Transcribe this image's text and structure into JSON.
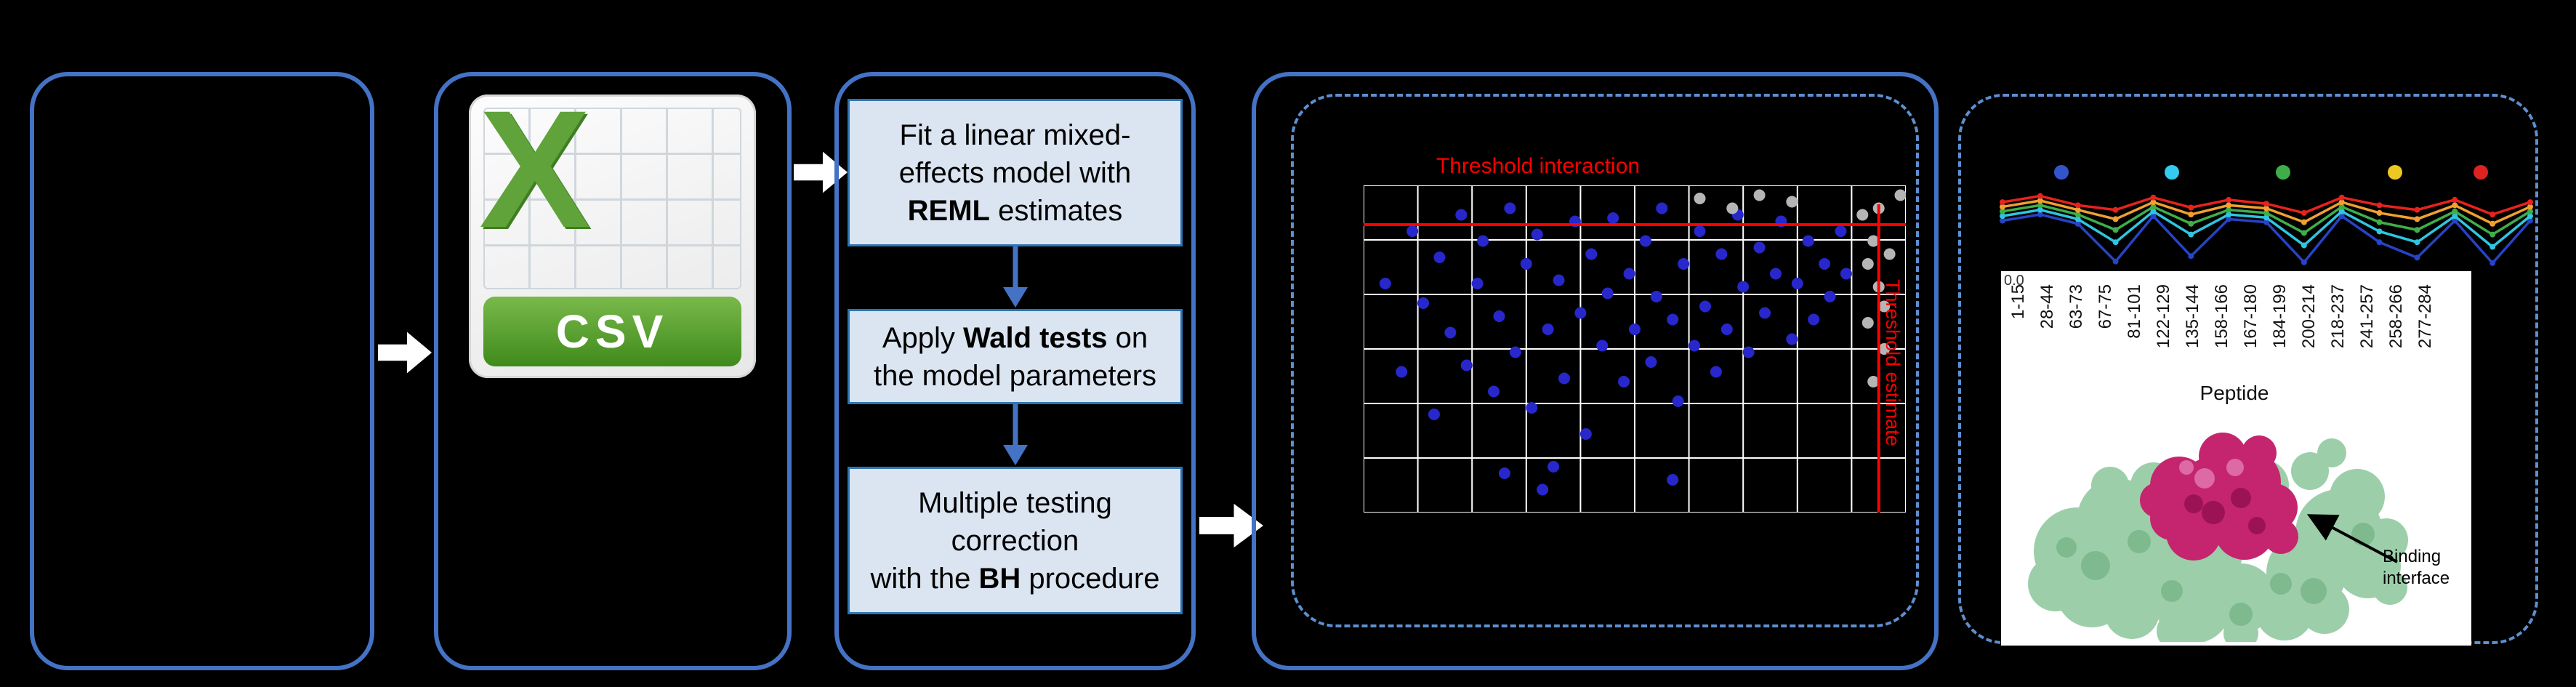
{
  "colors": {
    "background": "#000000",
    "panel_border_blue": "#4472C4",
    "dashed_border_blue": "#5D8FD0",
    "step_box_fill": "#DBE5F1",
    "step_box_border": "#2E74B5",
    "flow_arrow_white": "#FFFFFF",
    "threshold_red": "#FF0000",
    "csv_green": "#5FA33A"
  },
  "csv_icon": {
    "letter": "X",
    "label": "CSV"
  },
  "pipeline": {
    "steps": [
      {
        "segments": [
          {
            "t": "Fit a linear mixed-"
          },
          {
            "br": true
          },
          {
            "t": "effects model with"
          },
          {
            "br": true
          },
          {
            "t": "REML",
            "b": true
          },
          {
            "t": " estimates"
          }
        ]
      },
      {
        "segments": [
          {
            "t": "Apply "
          },
          {
            "t": "Wald tests",
            "b": true
          },
          {
            "t": " on"
          },
          {
            "br": true
          },
          {
            "t": "the model parameters"
          }
        ]
      },
      {
        "segments": [
          {
            "t": "Multiple testing"
          },
          {
            "br": true
          },
          {
            "t": "correction"
          },
          {
            "br": true
          },
          {
            "t": "with the "
          },
          {
            "t": "BH",
            "b": true
          },
          {
            "t": " procedure"
          }
        ]
      }
    ]
  },
  "panel_results": {
    "binding_label": "Binding interface"
  },
  "chart_data": [
    {
      "type": "scatter",
      "threshold_h_label": "Threshold interaction",
      "threshold_v_label": "Threshold estimate",
      "threshold_color": "#FF0000",
      "threshold_h": 0.12,
      "threshold_v": 0.95,
      "grid": {
        "cols": 10,
        "rows": 6
      },
      "coords": "fraction-of-plot-area",
      "series": [
        {
          "name": "blue-points",
          "color": "#2727CC",
          "points": [
            [
              0.04,
              0.3
            ],
            [
              0.07,
              0.57
            ],
            [
              0.09,
              0.14
            ],
            [
              0.11,
              0.36
            ],
            [
              0.13,
              0.7
            ],
            [
              0.14,
              0.22
            ],
            [
              0.16,
              0.45
            ],
            [
              0.18,
              0.09
            ],
            [
              0.19,
              0.55
            ],
            [
              0.21,
              0.3
            ],
            [
              0.22,
              0.17
            ],
            [
              0.24,
              0.63
            ],
            [
              0.25,
              0.4
            ],
            [
              0.27,
              0.07
            ],
            [
              0.28,
              0.51
            ],
            [
              0.3,
              0.24
            ],
            [
              0.31,
              0.68
            ],
            [
              0.32,
              0.15
            ],
            [
              0.34,
              0.44
            ],
            [
              0.35,
              0.86
            ],
            [
              0.36,
              0.29
            ],
            [
              0.37,
              0.59
            ],
            [
              0.39,
              0.11
            ],
            [
              0.4,
              0.39
            ],
            [
              0.41,
              0.76
            ],
            [
              0.42,
              0.21
            ],
            [
              0.44,
              0.49
            ],
            [
              0.45,
              0.33
            ],
            [
              0.46,
              0.1
            ],
            [
              0.48,
              0.6
            ],
            [
              0.49,
              0.27
            ],
            [
              0.5,
              0.44
            ],
            [
              0.52,
              0.17
            ],
            [
              0.53,
              0.54
            ],
            [
              0.54,
              0.34
            ],
            [
              0.55,
              0.07
            ],
            [
              0.57,
              0.41
            ],
            [
              0.58,
              0.66
            ],
            [
              0.59,
              0.24
            ],
            [
              0.61,
              0.49
            ],
            [
              0.62,
              0.14
            ],
            [
              0.63,
              0.37
            ],
            [
              0.65,
              0.57
            ],
            [
              0.66,
              0.21
            ],
            [
              0.67,
              0.44
            ],
            [
              0.69,
              0.09
            ],
            [
              0.7,
              0.31
            ],
            [
              0.71,
              0.51
            ],
            [
              0.73,
              0.19
            ],
            [
              0.74,
              0.39
            ],
            [
              0.76,
              0.27
            ],
            [
              0.77,
              0.11
            ],
            [
              0.79,
              0.47
            ],
            [
              0.8,
              0.3
            ],
            [
              0.82,
              0.17
            ],
            [
              0.83,
              0.41
            ],
            [
              0.85,
              0.24
            ],
            [
              0.86,
              0.34
            ],
            [
              0.88,
              0.14
            ],
            [
              0.89,
              0.27
            ],
            [
              0.57,
              0.9
            ],
            [
              0.33,
              0.93
            ],
            [
              0.26,
              0.88
            ]
          ]
        },
        {
          "name": "grey-points",
          "color": "#B5B5B5",
          "points": [
            [
              0.92,
              0.09
            ],
            [
              0.93,
              0.24
            ],
            [
              0.94,
              0.17
            ],
            [
              0.95,
              0.31
            ],
            [
              0.93,
              0.42
            ],
            [
              0.96,
              0.5
            ],
            [
              0.94,
              0.6
            ],
            [
              0.95,
              0.07
            ],
            [
              0.97,
              0.21
            ],
            [
              0.96,
              0.37
            ],
            [
              0.62,
              0.04
            ],
            [
              0.68,
              0.07
            ],
            [
              0.73,
              0.03
            ],
            [
              0.79,
              0.05
            ],
            [
              0.99,
              0.03
            ]
          ]
        }
      ]
    },
    {
      "type": "line",
      "categories": [
        "1-15",
        "28-44",
        "63-73",
        "67-75",
        "81-101",
        "122-129",
        "135-144",
        "158-166",
        "167-180",
        "184-199",
        "200-214",
        "218-237",
        "241-257",
        "258-266",
        "277-284"
      ],
      "xlabel": "Peptide",
      "ytick": "0.0",
      "coords": "fraction-of-plot-height-from-top",
      "legend_colors": [
        "#3355CC",
        "#33CCEE",
        "#3FAE49",
        "#EEC822",
        "#DD2222"
      ],
      "series": [
        {
          "name": "blue",
          "color": "#2743C6",
          "values": [
            0.42,
            0.34,
            0.46,
            0.95,
            0.36,
            0.88,
            0.4,
            0.44,
            0.96,
            0.36,
            0.7,
            0.9,
            0.42,
            0.97,
            0.42
          ]
        },
        {
          "name": "cyan",
          "color": "#2FC5E0",
          "values": [
            0.36,
            0.28,
            0.4,
            0.7,
            0.3,
            0.6,
            0.34,
            0.38,
            0.74,
            0.3,
            0.56,
            0.7,
            0.36,
            0.76,
            0.36
          ]
        },
        {
          "name": "green",
          "color": "#3FAE49",
          "values": [
            0.3,
            0.22,
            0.34,
            0.54,
            0.24,
            0.46,
            0.28,
            0.32,
            0.58,
            0.24,
            0.44,
            0.54,
            0.3,
            0.6,
            0.3
          ]
        },
        {
          "name": "orange",
          "color": "#F0A030",
          "values": [
            0.24,
            0.16,
            0.28,
            0.4,
            0.18,
            0.34,
            0.22,
            0.26,
            0.44,
            0.18,
            0.32,
            0.4,
            0.22,
            0.46,
            0.24
          ]
        },
        {
          "name": "red",
          "color": "#E8221C",
          "values": [
            0.18,
            0.1,
            0.22,
            0.28,
            0.12,
            0.25,
            0.15,
            0.2,
            0.32,
            0.12,
            0.22,
            0.28,
            0.15,
            0.34,
            0.18
          ]
        }
      ]
    }
  ]
}
